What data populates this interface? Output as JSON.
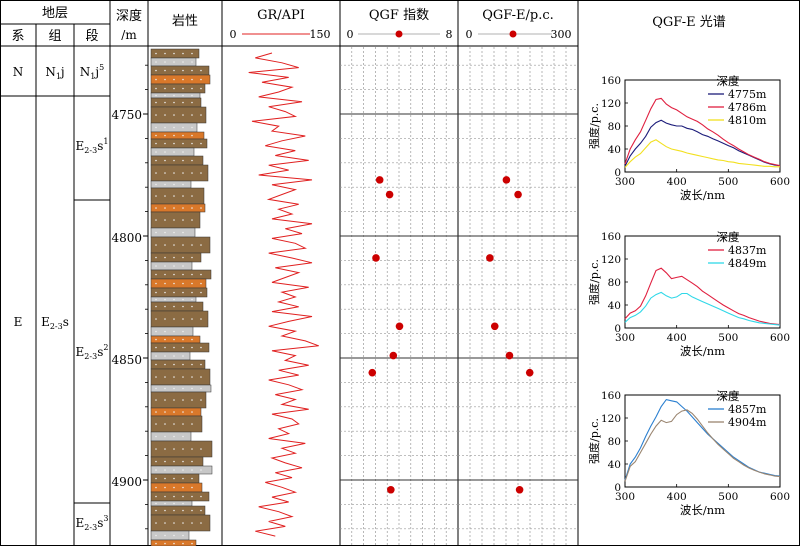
{
  "header": {
    "strata": "地层",
    "system": "系",
    "group": "组",
    "section": "段",
    "depth": "深度",
    "depth_unit": "/m",
    "lithology": "岩性",
    "gr": "GR/API",
    "gr_min": "0",
    "gr_max": "150",
    "qgf": "QGF 指数",
    "qgf_min": "0",
    "qgf_max": "8",
    "qgfe": "QGF-E/p.c.",
    "qgfe_min": "0",
    "qgfe_max": "300",
    "spectrum": "QGF-E 光谱"
  },
  "strata": {
    "system_N": "N",
    "system_E": "E",
    "group_N": "N",
    "group_N_sub": "1",
    "group_N_suffix": "j",
    "group_E": "E",
    "group_E_sub": "2-3",
    "group_E_suffix": "s",
    "sec_Nj5": "N",
    "sec_Nj5_sub": "1",
    "sec_Nj5_suffix": "j",
    "sec_Nj5_sup": "5",
    "sec_s1": "E",
    "sec_s1_sub": "2-3",
    "sec_s1_suffix": "s",
    "sec_s1_sup": "1",
    "sec_s2": "E",
    "sec_s2_sub": "2-3",
    "sec_s2_suffix": "s",
    "sec_s2_sup": "2",
    "sec_s3": "E",
    "sec_s3_sub": "2-3",
    "sec_s3_suffix": "s",
    "sec_s3_sup": "3"
  },
  "depth_ticks": [
    "4750",
    "4800",
    "4850",
    "4900"
  ],
  "colors": {
    "grid": "#666666",
    "gr_curve": "#e02020",
    "marker": "#cc0000",
    "mudstone": "#8b6b43",
    "sand_gray": "#c8c8c8",
    "sand_orange": "#d9782a"
  },
  "chart_data": [
    {
      "type": "line",
      "name": "GR log",
      "xlabel": "GR/API",
      "xlim": [
        0,
        150
      ],
      "depth": [
        4725,
        4727,
        4729,
        4731,
        4733,
        4735,
        4737,
        4739,
        4741,
        4743,
        4745,
        4747,
        4749,
        4751,
        4753,
        4755,
        4757,
        4759,
        4761,
        4763,
        4765,
        4767,
        4769,
        4771,
        4773,
        4775,
        4777,
        4779,
        4781,
        4783,
        4785,
        4787,
        4789,
        4791,
        4793,
        4795,
        4797,
        4799,
        4801,
        4803,
        4805,
        4807,
        4809,
        4811,
        4813,
        4815,
        4817,
        4819,
        4821,
        4823,
        4825,
        4827,
        4829,
        4831,
        4833,
        4835,
        4837,
        4839,
        4841,
        4843,
        4845,
        4847,
        4849,
        4851,
        4853,
        4855,
        4857,
        4859,
        4861,
        4863,
        4865,
        4867,
        4869,
        4871,
        4873,
        4875,
        4877,
        4879,
        4881,
        4883,
        4885,
        4887,
        4889,
        4891,
        4893,
        4895,
        4897,
        4899,
        4901,
        4903,
        4905,
        4907,
        4909,
        4911,
        4913,
        4915,
        4917,
        4919,
        4921,
        4923
      ],
      "values": [
        60,
        35,
        75,
        100,
        25,
        85,
        45,
        90,
        70,
        40,
        105,
        55,
        80,
        95,
        30,
        70,
        60,
        110,
        75,
        50,
        95,
        65,
        115,
        55,
        85,
        40,
        120,
        60,
        95,
        75,
        55,
        100,
        70,
        90,
        60,
        120,
        80,
        105,
        60,
        95,
        110,
        55,
        90,
        120,
        65,
        100,
        80,
        60,
        115,
        75,
        95,
        70,
        100,
        60,
        120,
        85,
        55,
        95,
        75,
        110,
        130,
        60,
        95,
        80,
        115,
        70,
        100,
        55,
        85,
        105,
        65,
        95,
        75,
        115,
        60,
        90,
        100,
        70,
        85,
        55,
        110,
        75,
        95,
        60,
        80,
        105,
        65,
        90,
        50,
        75,
        95,
        60,
        85,
        40,
        70,
        90,
        55,
        80,
        35,
        65
      ]
    },
    {
      "type": "scatter",
      "name": "QGF 指数",
      "xlim": [
        0,
        8
      ],
      "points": [
        {
          "x": 2.4,
          "y": 4777
        },
        {
          "x": 3.2,
          "y": 4783
        },
        {
          "x": 2.1,
          "y": 4809
        },
        {
          "x": 4.0,
          "y": 4837
        },
        {
          "x": 3.5,
          "y": 4849
        },
        {
          "x": 1.8,
          "y": 4856
        },
        {
          "x": 3.3,
          "y": 4904
        }
      ]
    },
    {
      "type": "scatter",
      "name": "QGF-E/p.c.",
      "xlim": [
        0,
        300
      ],
      "points": [
        {
          "x": 122,
          "y": 4777
        },
        {
          "x": 160,
          "y": 4783
        },
        {
          "x": 68,
          "y": 4809
        },
        {
          "x": 84,
          "y": 4837
        },
        {
          "x": 132,
          "y": 4849
        },
        {
          "x": 198,
          "y": 4856
        },
        {
          "x": 165,
          "y": 4904
        }
      ]
    },
    {
      "type": "line",
      "legend_title": "深度",
      "xlabel": "波长/nm",
      "ylabel": "强度/p.c.",
      "xlim": [
        300,
        600
      ],
      "ylim": [
        0,
        160
      ],
      "xticks": [
        "300",
        "400",
        "500",
        "600"
      ],
      "yticks": [
        "0",
        "40",
        "80",
        "120",
        "160"
      ],
      "x": [
        300,
        310,
        320,
        330,
        340,
        350,
        360,
        370,
        380,
        390,
        400,
        410,
        420,
        430,
        440,
        450,
        460,
        470,
        480,
        490,
        500,
        510,
        520,
        530,
        540,
        550,
        560,
        570,
        580,
        590,
        600
      ],
      "series": [
        {
          "name": "4775m",
          "color": "#1c1c7a",
          "values": [
            10,
            28,
            40,
            50,
            62,
            78,
            86,
            90,
            85,
            82,
            80,
            80,
            76,
            74,
            70,
            65,
            62,
            58,
            54,
            50,
            46,
            42,
            37,
            33,
            29,
            25,
            21,
            17,
            14,
            12,
            11
          ]
        },
        {
          "name": "4786m",
          "color": "#e02040",
          "values": [
            14,
            40,
            56,
            70,
            90,
            110,
            126,
            128,
            118,
            112,
            108,
            102,
            96,
            92,
            88,
            82,
            75,
            70,
            64,
            57,
            51,
            46,
            40,
            35,
            30,
            26,
            22,
            18,
            15,
            13,
            11
          ]
        },
        {
          "name": "4810m",
          "color": "#f2e020",
          "values": [
            8,
            18,
            26,
            32,
            42,
            52,
            56,
            50,
            44,
            40,
            38,
            36,
            33,
            31,
            29,
            27,
            25,
            23,
            21,
            20,
            18,
            17,
            15,
            14,
            13,
            12,
            11,
            10,
            10,
            9,
            9
          ]
        }
      ]
    },
    {
      "type": "line",
      "legend_title": "深度",
      "xlabel": "波长/nm",
      "ylabel": "强度/p.c.",
      "xlim": [
        300,
        600
      ],
      "ylim": [
        0,
        160
      ],
      "xticks": [
        "300",
        "400",
        "500",
        "600"
      ],
      "yticks": [
        "0",
        "40",
        "80",
        "120",
        "160"
      ],
      "x": [
        300,
        310,
        320,
        330,
        340,
        350,
        360,
        370,
        380,
        390,
        400,
        410,
        420,
        430,
        440,
        450,
        460,
        470,
        480,
        490,
        500,
        510,
        520,
        530,
        540,
        550,
        560,
        570,
        580,
        590,
        600
      ],
      "series": [
        {
          "name": "4837m",
          "color": "#e02040",
          "values": [
            16,
            26,
            30,
            38,
            56,
            78,
            100,
            104,
            96,
            86,
            88,
            90,
            84,
            78,
            72,
            64,
            58,
            52,
            46,
            40,
            35,
            30,
            25,
            22,
            18,
            15,
            12,
            10,
            8,
            7,
            6
          ]
        },
        {
          "name": "4849m",
          "color": "#30d8e8",
          "values": [
            10,
            18,
            22,
            28,
            38,
            52,
            58,
            62,
            56,
            52,
            54,
            60,
            60,
            54,
            50,
            46,
            42,
            38,
            34,
            30,
            26,
            22,
            18,
            16,
            13,
            11,
            9,
            8,
            7,
            6,
            5
          ]
        }
      ]
    },
    {
      "type": "line",
      "legend_title": "深度",
      "xlabel": "波长/nm",
      "ylabel": "强度/p.c.",
      "xlim": [
        300,
        600
      ],
      "ylim": [
        0,
        160
      ],
      "xticks": [
        "300",
        "400",
        "500",
        "600"
      ],
      "yticks": [
        "0",
        "40",
        "80",
        "120",
        "160"
      ],
      "x": [
        300,
        310,
        320,
        330,
        340,
        350,
        360,
        370,
        380,
        390,
        400,
        410,
        420,
        430,
        440,
        450,
        460,
        470,
        480,
        490,
        500,
        510,
        520,
        530,
        540,
        550,
        560,
        570,
        580,
        590,
        600
      ],
      "series": [
        {
          "name": "4857m",
          "color": "#2a7fd0",
          "values": [
            12,
            40,
            52,
            68,
            88,
            106,
            122,
            140,
            152,
            150,
            148,
            140,
            132,
            122,
            112,
            102,
            92,
            84,
            76,
            68,
            60,
            52,
            46,
            40,
            34,
            30,
            26,
            24,
            22,
            20,
            19
          ]
        },
        {
          "name": "4904m",
          "color": "#9a8570",
          "values": [
            10,
            36,
            44,
            60,
            76,
            92,
            106,
            116,
            112,
            114,
            126,
            132,
            134,
            128,
            118,
            106,
            94,
            84,
            74,
            66,
            58,
            50,
            44,
            38,
            33,
            29,
            26,
            23,
            21,
            19,
            18
          ]
        }
      ]
    }
  ]
}
